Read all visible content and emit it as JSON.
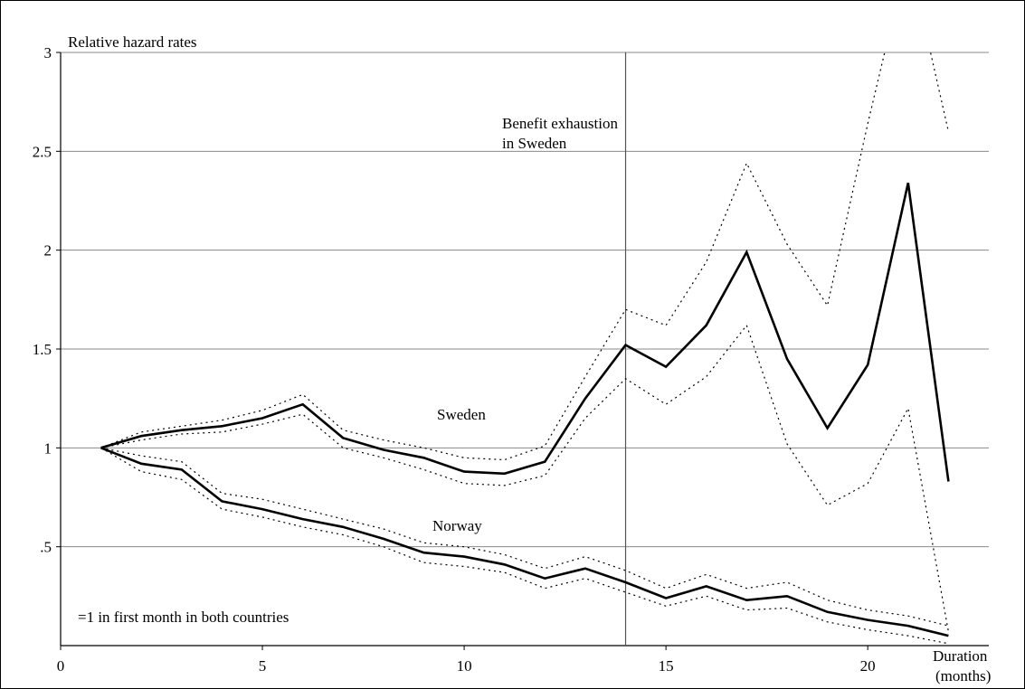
{
  "chart_data": {
    "type": "line",
    "ylabel": "Relative hazard rates",
    "xlabel_line1": "Duration",
    "xlabel_line2": "(months)",
    "xlim": [
      0,
      23
    ],
    "ylim": [
      0,
      3
    ],
    "grid": "horizontal",
    "x_ticks": [
      0,
      5,
      10,
      15,
      20
    ],
    "x_tick_labels": [
      "0",
      "5",
      "10",
      "15",
      "20"
    ],
    "y_ticks": [
      0.5,
      1,
      1.5,
      2,
      2.5,
      3
    ],
    "y_tick_labels": [
      ".5",
      "1",
      "1.5",
      "2",
      "2.5",
      "3"
    ],
    "x": [
      1,
      2,
      3,
      4,
      5,
      6,
      7,
      8,
      9,
      10,
      11,
      12,
      13,
      14,
      15,
      16,
      17,
      18,
      19,
      20,
      21,
      22
    ],
    "series": [
      {
        "name": "Sweden",
        "style": "solid",
        "values": [
          1.0,
          1.06,
          1.09,
          1.11,
          1.15,
          1.22,
          1.05,
          0.99,
          0.95,
          0.88,
          0.87,
          0.93,
          1.25,
          1.52,
          1.41,
          1.62,
          1.99,
          1.45,
          1.1,
          1.42,
          2.34,
          0.83
        ]
      },
      {
        "name": "Sweden upper CI",
        "style": "dotted",
        "values": [
          1.0,
          1.08,
          1.11,
          1.14,
          1.19,
          1.27,
          1.09,
          1.04,
          1.0,
          0.95,
          0.94,
          1.01,
          1.36,
          1.7,
          1.62,
          1.94,
          2.44,
          2.03,
          1.72,
          2.64,
          3.5,
          2.6
        ]
      },
      {
        "name": "Sweden lower CI",
        "style": "dotted",
        "values": [
          1.0,
          1.04,
          1.07,
          1.08,
          1.12,
          1.17,
          1.0,
          0.95,
          0.89,
          0.82,
          0.81,
          0.86,
          1.15,
          1.35,
          1.22,
          1.36,
          1.62,
          1.02,
          0.71,
          0.82,
          1.2,
          0.07
        ]
      },
      {
        "name": "Norway",
        "style": "solid",
        "values": [
          1.0,
          0.92,
          0.89,
          0.73,
          0.69,
          0.64,
          0.6,
          0.54,
          0.47,
          0.45,
          0.41,
          0.34,
          0.39,
          0.32,
          0.24,
          0.3,
          0.23,
          0.25,
          0.17,
          0.13,
          0.1,
          0.05
        ]
      },
      {
        "name": "Norway upper CI",
        "style": "dotted",
        "values": [
          1.0,
          0.96,
          0.93,
          0.77,
          0.74,
          0.69,
          0.64,
          0.59,
          0.52,
          0.5,
          0.46,
          0.39,
          0.45,
          0.38,
          0.29,
          0.36,
          0.29,
          0.32,
          0.23,
          0.18,
          0.15,
          0.1
        ]
      },
      {
        "name": "Norway lower CI",
        "style": "dotted",
        "values": [
          1.0,
          0.88,
          0.84,
          0.69,
          0.65,
          0.6,
          0.56,
          0.5,
          0.42,
          0.4,
          0.37,
          0.29,
          0.34,
          0.27,
          0.2,
          0.25,
          0.18,
          0.19,
          0.12,
          0.08,
          0.05,
          0.01
        ]
      }
    ],
    "series_labels": [
      {
        "text": "Sweden",
        "x": 18.6,
        "y": 1.2
      },
      {
        "text": "Norway",
        "x": 18.6,
        "y": 0.6
      }
    ],
    "vline": {
      "x": 14,
      "label_line1": "Benefit exhaustion",
      "label_line2": "in Sweden"
    },
    "note": "=1 in first month in both countries"
  }
}
